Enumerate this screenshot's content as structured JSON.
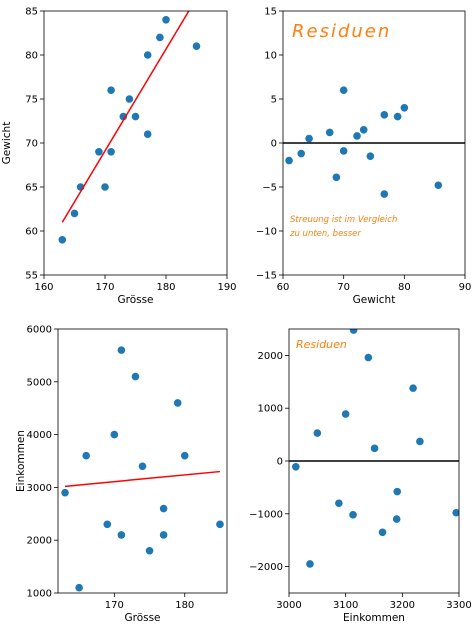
{
  "chart_data": [
    {
      "type": "scatter",
      "xlabel": "Grösse",
      "ylabel": "Gewicht",
      "xlim": [
        160,
        190
      ],
      "ylim": [
        55,
        85
      ],
      "xticks": [
        160,
        170,
        180,
        190
      ],
      "yticks": [
        55,
        60,
        65,
        70,
        75,
        80,
        85
      ],
      "grid": false,
      "point_color": "#1f77b4",
      "points": [
        {
          "x": 163,
          "y": 59
        },
        {
          "x": 165,
          "y": 62
        },
        {
          "x": 166,
          "y": 65
        },
        {
          "x": 169,
          "y": 69
        },
        {
          "x": 170,
          "y": 65
        },
        {
          "x": 171,
          "y": 69
        },
        {
          "x": 171,
          "y": 76
        },
        {
          "x": 173,
          "y": 73
        },
        {
          "x": 174,
          "y": 75
        },
        {
          "x": 175,
          "y": 73
        },
        {
          "x": 177,
          "y": 71
        },
        {
          "x": 177,
          "y": 80
        },
        {
          "x": 179,
          "y": 82
        },
        {
          "x": 180,
          "y": 84
        },
        {
          "x": 185,
          "y": 81
        }
      ],
      "fit_line": {
        "color": "#ff0000",
        "x": [
          163,
          184
        ],
        "y": [
          61,
          85.3
        ]
      },
      "annotations": []
    },
    {
      "type": "scatter",
      "xlabel": "Gewicht",
      "ylabel": "",
      "xlim": [
        60,
        90
      ],
      "ylim": [
        -15,
        15
      ],
      "xticks": [
        60,
        70,
        80,
        90
      ],
      "yticks": [
        -15,
        -10,
        -5,
        0,
        5,
        10,
        15
      ],
      "grid": false,
      "point_color": "#1f77b4",
      "points": [
        {
          "x": 61,
          "y": -2
        },
        {
          "x": 63,
          "y": -1.2
        },
        {
          "x": 64.3,
          "y": 0.5
        },
        {
          "x": 67.7,
          "y": 1.2
        },
        {
          "x": 68.8,
          "y": -3.9
        },
        {
          "x": 70,
          "y": 6
        },
        {
          "x": 70,
          "y": -0.9
        },
        {
          "x": 72.2,
          "y": 0.8
        },
        {
          "x": 73.3,
          "y": 1.5
        },
        {
          "x": 74.4,
          "y": -1.5
        },
        {
          "x": 76.7,
          "y": 3.2
        },
        {
          "x": 76.7,
          "y": -5.8
        },
        {
          "x": 78.9,
          "y": 3
        },
        {
          "x": 80,
          "y": 4
        },
        {
          "x": 85.6,
          "y": -4.8
        }
      ],
      "hline": {
        "y": 0,
        "color": "#000000"
      },
      "annotations": [
        {
          "text": "Residuen",
          "size": "large"
        },
        {
          "text": "Streuung ist im Vergleich",
          "size": "small"
        },
        {
          "text": "zu unten, besser",
          "size": "small"
        }
      ]
    },
    {
      "type": "scatter",
      "xlabel": "Grösse",
      "ylabel": "Einkommen",
      "xlim": [
        162,
        186
      ],
      "ylim": [
        1000,
        6000
      ],
      "xticks": [
        170,
        180
      ],
      "yticks": [
        1000,
        2000,
        3000,
        4000,
        5000,
        6000
      ],
      "grid": false,
      "point_color": "#1f77b4",
      "points": [
        {
          "x": 163,
          "y": 2900
        },
        {
          "x": 165,
          "y": 1100
        },
        {
          "x": 166,
          "y": 3600
        },
        {
          "x": 169,
          "y": 2300
        },
        {
          "x": 170,
          "y": 4000
        },
        {
          "x": 171,
          "y": 2100
        },
        {
          "x": 171,
          "y": 5600
        },
        {
          "x": 173,
          "y": 5100
        },
        {
          "x": 174,
          "y": 3400
        },
        {
          "x": 175,
          "y": 1800
        },
        {
          "x": 177,
          "y": 2100
        },
        {
          "x": 177,
          "y": 2600
        },
        {
          "x": 179,
          "y": 4600
        },
        {
          "x": 180,
          "y": 3600
        },
        {
          "x": 185,
          "y": 2300
        }
      ],
      "fit_line": {
        "color": "#ff0000",
        "x": [
          163,
          185
        ],
        "y": [
          3020,
          3300
        ]
      },
      "annotations": []
    },
    {
      "type": "scatter",
      "xlabel": "Einkommen",
      "ylabel": "",
      "xlim": [
        3000,
        3300
      ],
      "ylim": [
        -2500,
        2500
      ],
      "xticks": [
        3000,
        3100,
        3200,
        3300
      ],
      "yticks": [
        -2000,
        -1000,
        0,
        1000,
        2000
      ],
      "grid": false,
      "point_color": "#1f77b4",
      "points": [
        {
          "x": 3012,
          "y": -110
        },
        {
          "x": 3037,
          "y": -1950
        },
        {
          "x": 3050,
          "y": 530
        },
        {
          "x": 3088,
          "y": -800
        },
        {
          "x": 3100,
          "y": 890
        },
        {
          "x": 3113,
          "y": -1020
        },
        {
          "x": 3114,
          "y": 2480
        },
        {
          "x": 3140,
          "y": 1960
        },
        {
          "x": 3151,
          "y": 240
        },
        {
          "x": 3165,
          "y": -1350
        },
        {
          "x": 3190,
          "y": -1100
        },
        {
          "x": 3191,
          "y": -580
        },
        {
          "x": 3219,
          "y": 1380
        },
        {
          "x": 3231,
          "y": 370
        },
        {
          "x": 3295,
          "y": -980
        }
      ],
      "hline": {
        "y": 0,
        "color": "#000000"
      },
      "annotations": [
        {
          "text": "Residuen",
          "size": "medium"
        }
      ]
    }
  ]
}
